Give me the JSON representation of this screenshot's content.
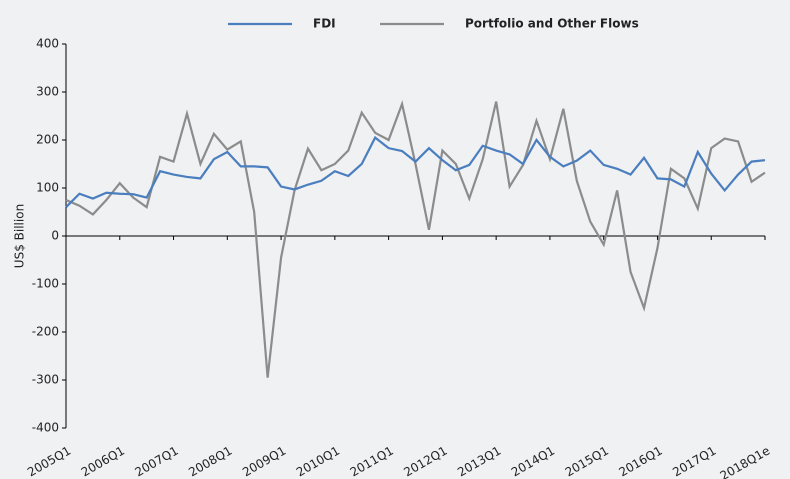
{
  "chart_data": {
    "type": "line",
    "y_label": "US$ Billion",
    "categories": [
      "2005Q1",
      null,
      null,
      null,
      "2006Q1",
      null,
      null,
      null,
      "2007Q1",
      null,
      null,
      null,
      "2008Q1",
      null,
      null,
      null,
      "2009Q1",
      null,
      null,
      null,
      "2010Q1",
      null,
      null,
      null,
      "2011Q1",
      null,
      null,
      null,
      "2012Q1",
      null,
      null,
      null,
      "2013Q1",
      null,
      null,
      null,
      "2014Q1",
      null,
      null,
      null,
      "2015Q1",
      null,
      null,
      null,
      "2016Q1",
      null,
      null,
      null,
      "2017Q1",
      null,
      null,
      null,
      "2018Q1e"
    ],
    "series": [
      {
        "name": "FDI",
        "color": "#4a7ebf",
        "values": [
          60,
          88,
          78,
          90,
          88,
          87,
          80,
          135,
          128,
          123,
          120,
          160,
          175,
          145,
          145,
          143,
          103,
          97,
          107,
          115,
          135,
          125,
          150,
          205,
          183,
          177,
          155,
          183,
          158,
          137,
          148,
          188,
          178,
          170,
          150,
          200,
          165,
          145,
          157,
          178,
          148,
          140,
          128,
          163,
          120,
          118,
          103,
          175,
          130,
          95,
          128,
          155,
          158
        ]
      },
      {
        "name": "Portfolio and Other Flows",
        "color": "#8c8c8c",
        "values": [
          75,
          63,
          45,
          75,
          110,
          80,
          60,
          165,
          155,
          255,
          150,
          213,
          180,
          197,
          50,
          -295,
          -45,
          95,
          182,
          137,
          150,
          178,
          257,
          215,
          200,
          275,
          150,
          13,
          178,
          150,
          78,
          160,
          280,
          103,
          148,
          240,
          160,
          265,
          115,
          30,
          -18,
          95,
          -75,
          -150,
          -25,
          140,
          120,
          57,
          183,
          203,
          197,
          113,
          132
        ]
      }
    ],
    "ylim": [
      -400,
      400
    ],
    "yticks": [
      -400,
      -300,
      -200,
      -100,
      0,
      100,
      200,
      300,
      400
    ],
    "legend": "top"
  }
}
